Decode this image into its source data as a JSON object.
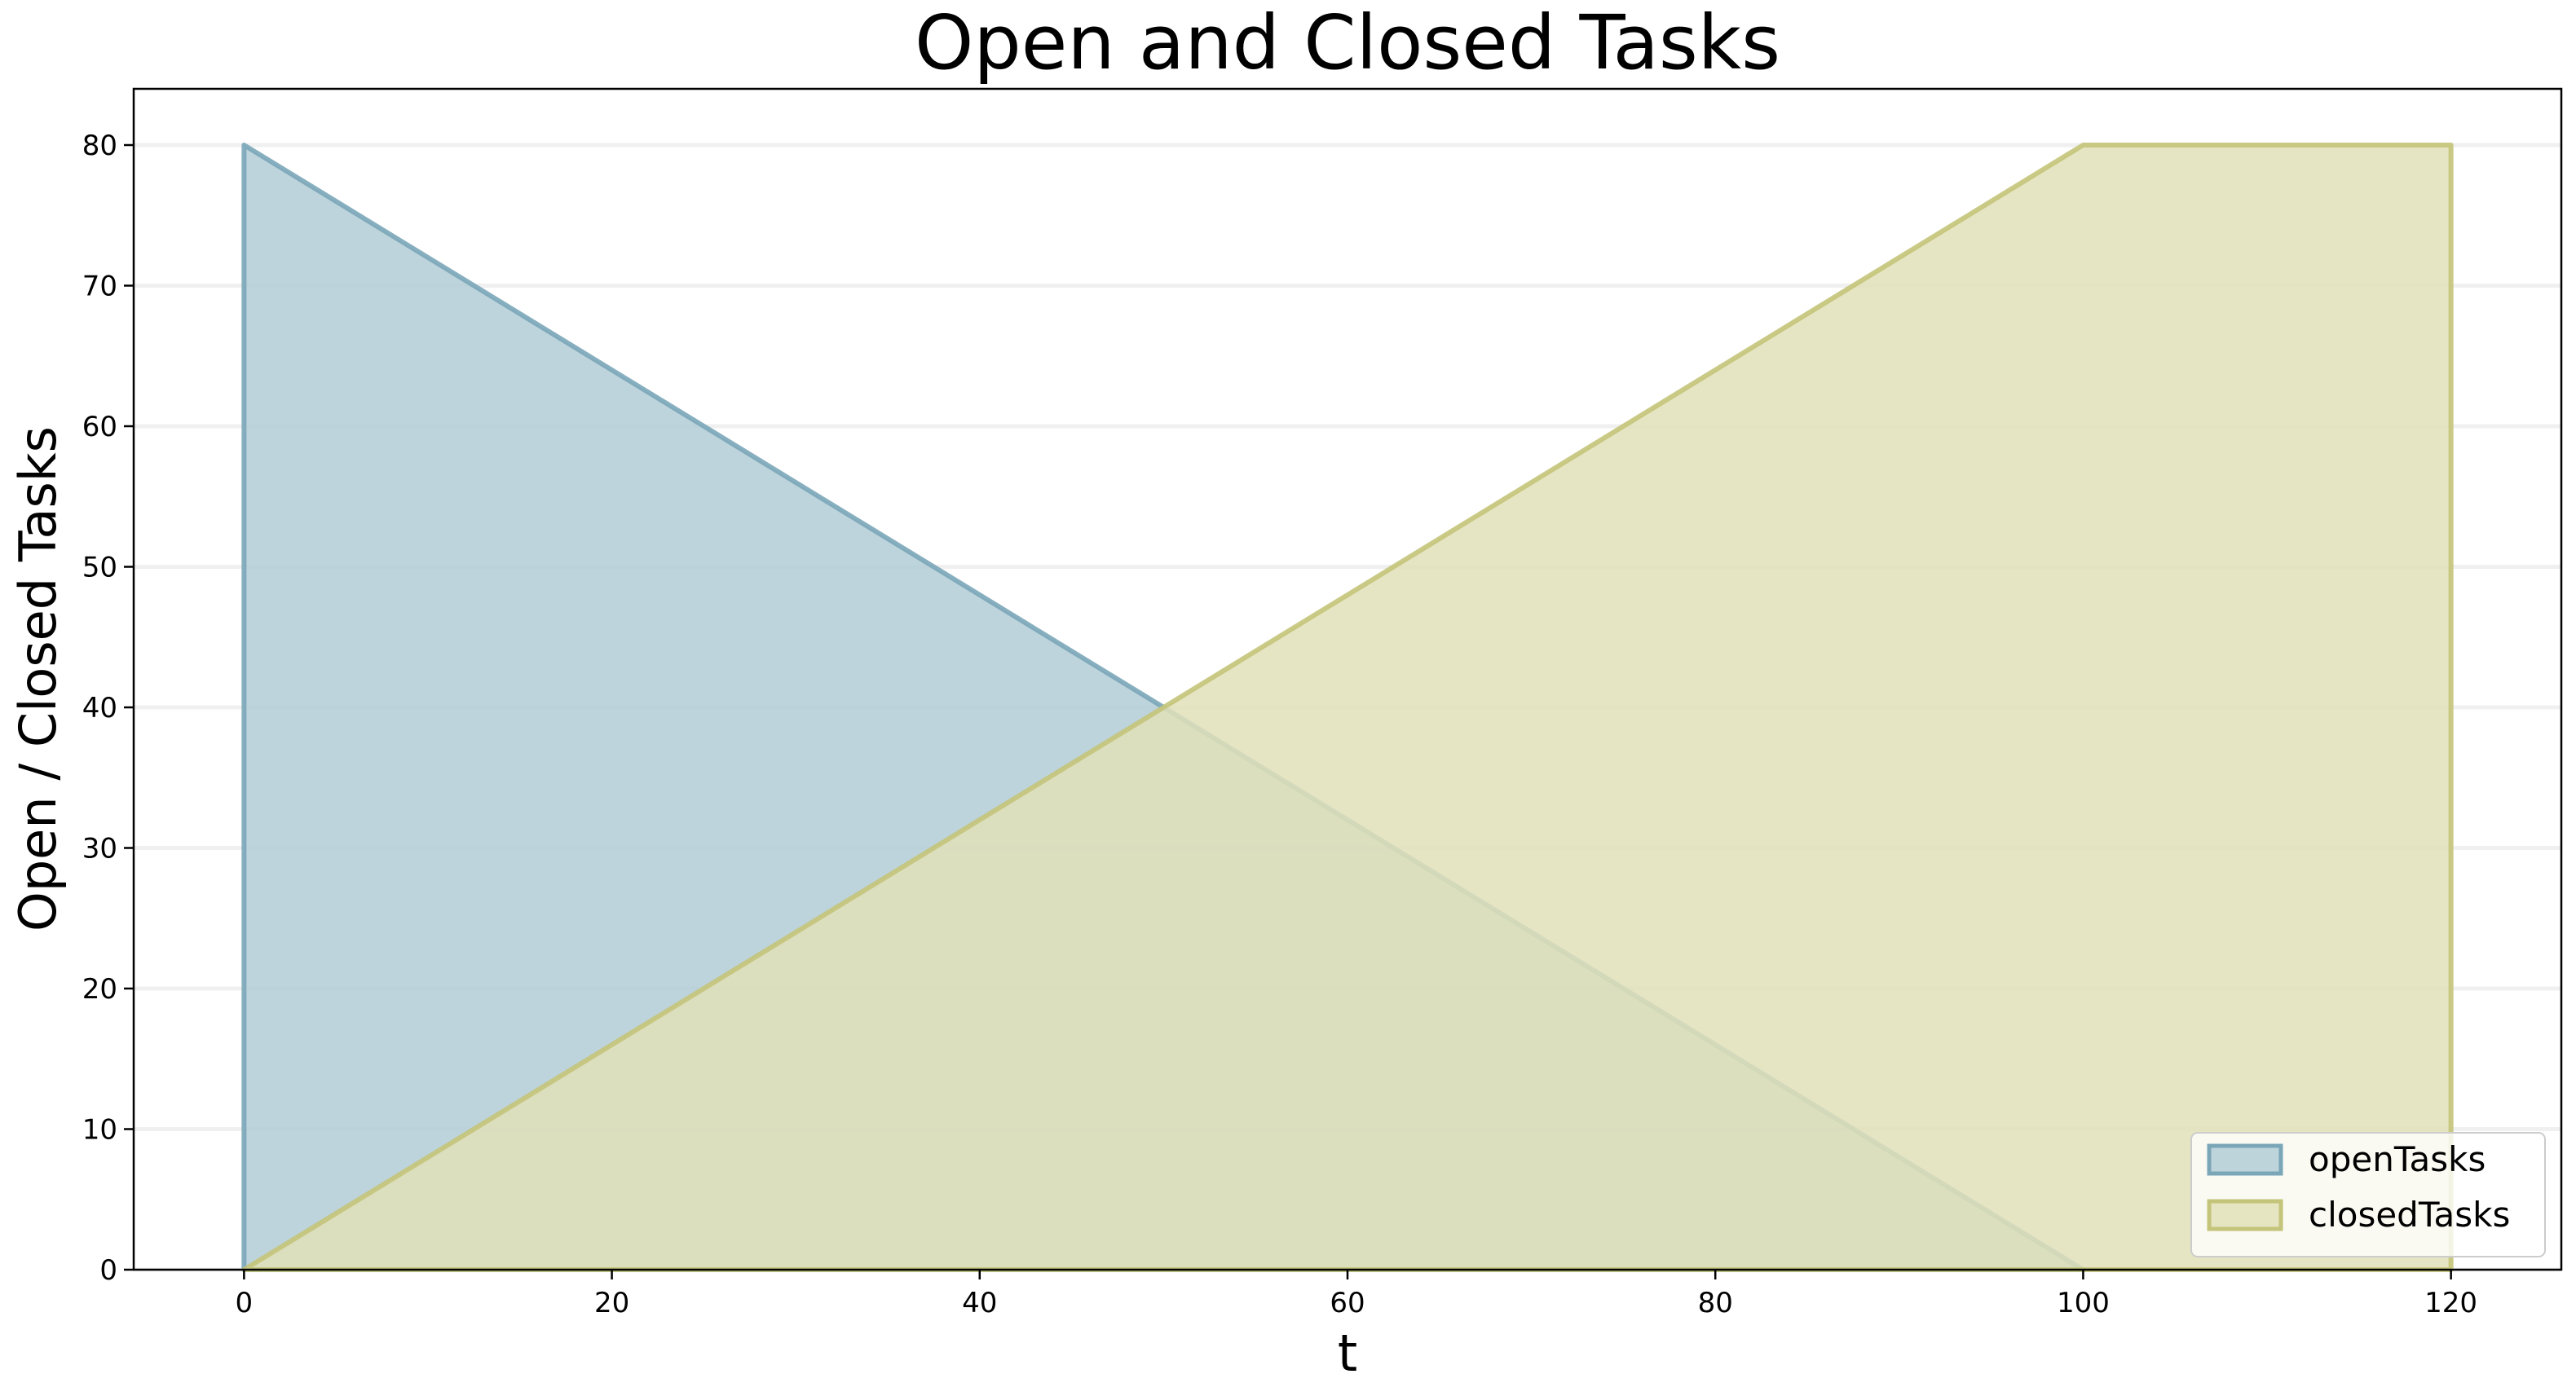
{
  "chart_data": {
    "type": "area",
    "title": "Open and Closed Tasks",
    "xlabel": "t",
    "ylabel": "Open / Closed Tasks",
    "xlim": [
      -6,
      126
    ],
    "ylim": [
      0,
      84
    ],
    "xticks": [
      0,
      20,
      40,
      60,
      80,
      100,
      120
    ],
    "yticks": [
      0,
      10,
      20,
      30,
      40,
      50,
      60,
      70,
      80
    ],
    "grid": "horizontal",
    "legend_position": "bottom-right",
    "series": [
      {
        "name": "openTasks",
        "color": "#7aa6b8",
        "fill": "#b3ccd6",
        "x": [
          0,
          100
        ],
        "y": [
          80,
          0
        ]
      },
      {
        "name": "closedTasks",
        "color": "#c4c47a",
        "fill": "#e0e0b8",
        "x": [
          0,
          100,
          120
        ],
        "y": [
          0,
          80,
          80
        ]
      }
    ]
  }
}
